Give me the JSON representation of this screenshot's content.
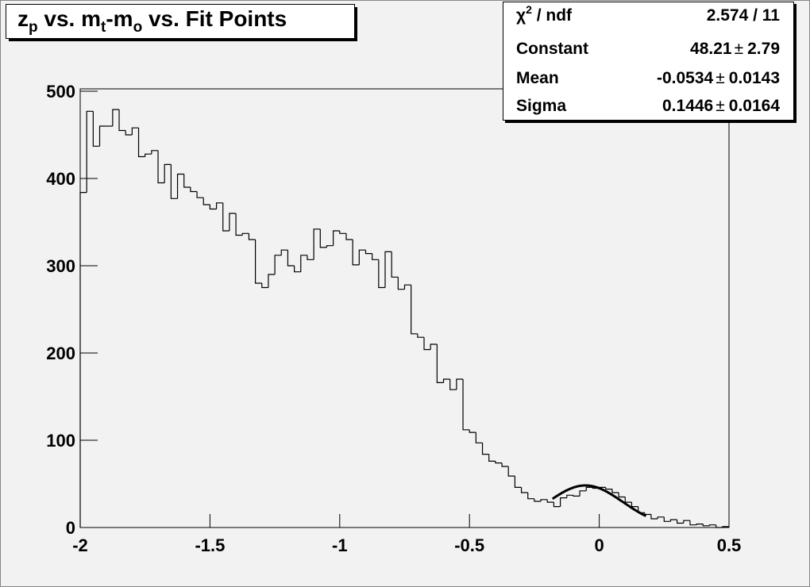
{
  "chart_data": {
    "type": "histogram",
    "title": [
      {
        "text": "z"
      },
      {
        "text": "p",
        "sub": true
      },
      {
        "text": " vs. m"
      },
      {
        "text": "t",
        "sub": true
      },
      {
        "text": "-m"
      },
      {
        "text": "o",
        "sub": true
      },
      {
        "text": " vs. Fit Points"
      }
    ],
    "bins": [
      -2,
      -1.975,
      -1.95,
      -1.925,
      -1.9,
      -1.875,
      -1.85,
      -1.825,
      -1.8,
      -1.775,
      -1.75,
      -1.725,
      -1.7,
      -1.675,
      -1.65,
      -1.625,
      -1.6,
      -1.575,
      -1.55,
      -1.525,
      -1.5,
      -1.475,
      -1.45,
      -1.425,
      -1.4,
      -1.375,
      -1.35,
      -1.325,
      -1.3,
      -1.275,
      -1.25,
      -1.225,
      -1.2,
      -1.175,
      -1.15,
      -1.125,
      -1.1,
      -1.075,
      -1.05,
      -1.025,
      -1,
      -0.975,
      -0.95,
      -0.925,
      -0.9,
      -0.875,
      -0.85,
      -0.825,
      -0.8,
      -0.775,
      -0.75,
      -0.725,
      -0.7,
      -0.675,
      -0.65,
      -0.625,
      -0.6,
      -0.575,
      -0.55,
      -0.525,
      -0.5,
      -0.475,
      -0.45,
      -0.425,
      -0.4,
      -0.375,
      -0.35,
      -0.325,
      -0.3,
      -0.275,
      -0.25,
      -0.225,
      -0.2,
      -0.175,
      -0.15,
      -0.125,
      -0.1,
      -0.075,
      -0.05,
      -0.025,
      0,
      0.025,
      0.05,
      0.075,
      0.1,
      0.125,
      0.15,
      0.175,
      0.2,
      0.225,
      0.25,
      0.275,
      0.3,
      0.325,
      0.35,
      0.375,
      0.4,
      0.425,
      0.45,
      0.475,
      0.5
    ],
    "values": [
      384,
      477,
      437,
      460,
      460,
      479,
      455,
      450,
      458,
      425,
      428,
      432,
      395,
      416,
      377,
      405,
      390,
      385,
      378,
      370,
      365,
      372,
      340,
      360,
      335,
      337,
      330,
      280,
      275,
      290,
      312,
      318,
      300,
      293,
      312,
      307,
      342,
      321,
      323,
      340,
      337,
      330,
      301,
      318,
      314,
      307,
      275,
      316,
      287,
      273,
      278,
      222,
      218,
      204,
      210,
      166,
      170,
      158,
      170,
      112,
      109,
      97,
      84,
      76,
      74,
      70,
      59,
      46,
      40,
      33,
      30,
      32,
      29,
      24,
      34,
      37,
      36,
      42,
      46,
      45,
      46,
      44,
      40,
      35,
      29,
      24,
      17,
      15,
      10,
      12,
      7,
      9,
      5,
      8,
      3,
      4,
      2,
      3,
      0,
      1
    ],
    "color": "#000000",
    "xlim": [
      -2,
      0.5
    ],
    "xticks": [
      -2,
      -1.5,
      -1,
      -0.5,
      0,
      0.5
    ],
    "ylim": [
      0,
      500
    ],
    "yticks": [
      0,
      100,
      200,
      300,
      400,
      500
    ],
    "fit": {
      "range": [
        -0.18,
        0.18
      ],
      "color": "#000000",
      "chi2": {
        "label": [
          {
            "text": "χ"
          },
          {
            "text": "2",
            "sup": true
          },
          {
            "text": " / ndf"
          }
        ],
        "value": "2.574 / 11"
      },
      "separator": "±",
      "parameters": [
        {
          "name": "Constant",
          "value": 48.21,
          "error": 2.79
        },
        {
          "name": "Mean",
          "value": -0.0534,
          "error": 0.0143
        },
        {
          "name": "Sigma",
          "value": 0.1446,
          "error": 0.0164
        }
      ]
    }
  }
}
